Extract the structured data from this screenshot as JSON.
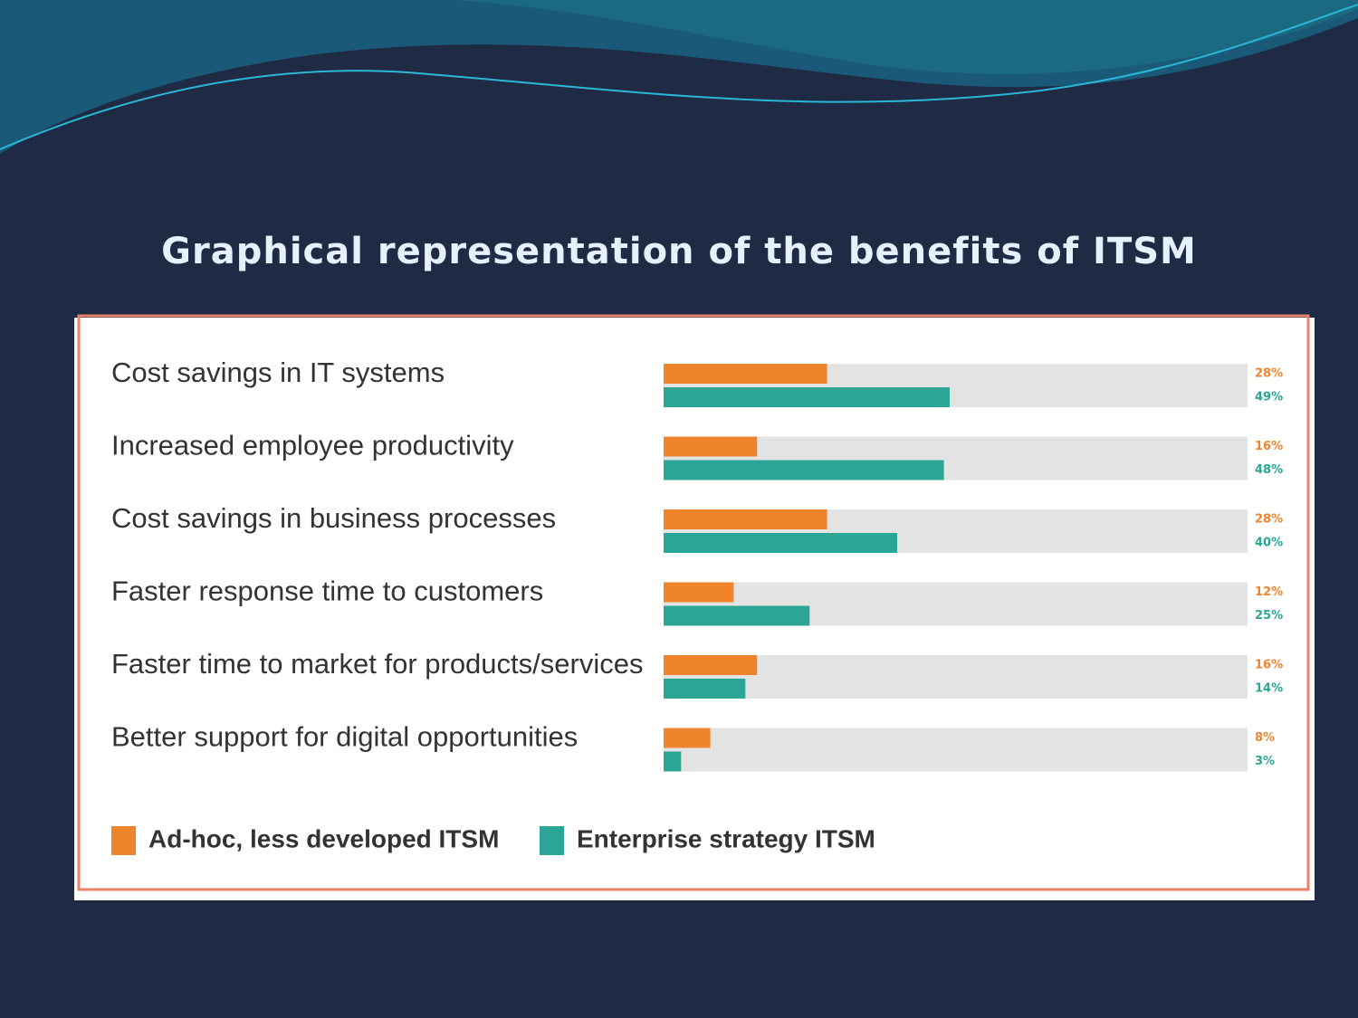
{
  "slide": {
    "title": "Graphical representation of the benefits of ITSM"
  },
  "chart_data": {
    "type": "bar",
    "orientation": "horizontal",
    "categories": [
      "Cost savings in IT systems",
      "Increased employee productivity",
      "Cost savings in business processes",
      "Faster response time to customers",
      "Faster time to market for products/services",
      "Better support for digital opportunities"
    ],
    "series": [
      {
        "name": "Ad-hoc, less developed ITSM",
        "color": "#f0842c",
        "values": [
          28,
          16,
          28,
          12,
          16,
          8
        ],
        "value_labels": [
          "28%",
          "16%",
          "28%",
          "12%",
          "16%",
          "8%"
        ]
      },
      {
        "name": "Enterprise strategy ITSM",
        "color": "#2aa596",
        "values": [
          49,
          48,
          40,
          25,
          14,
          3
        ],
        "value_labels": [
          "49%",
          "48%",
          "40%",
          "25%",
          "14%",
          "3%"
        ]
      }
    ],
    "xlim": [
      0,
      100
    ]
  }
}
